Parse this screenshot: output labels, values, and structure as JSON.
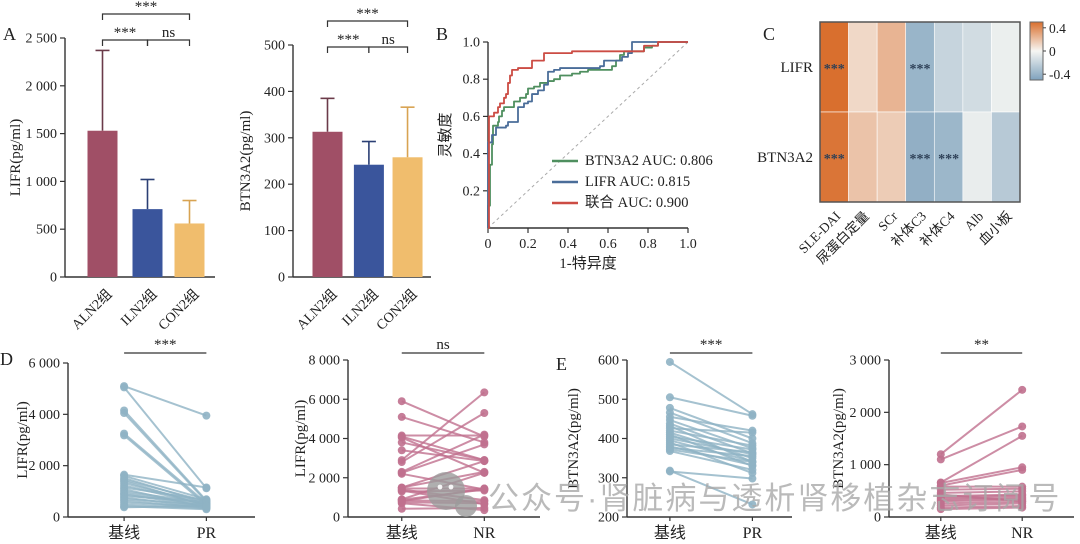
{
  "figure": {
    "panels": {
      "a": "A",
      "b": "B",
      "c": "C",
      "d": "D",
      "e": "E"
    },
    "watermark": {
      "text": "公众号·肾脏病与透析肾移植杂志订阅号",
      "logo": "wechat-like-gray-logo"
    },
    "colors": {
      "bar_maroon": "#a04f66",
      "bar_blue": "#3a559c",
      "bar_yellow": "#f0bd6d",
      "roc_green": "#4f8f5f",
      "roc_blue": "#4a6d99",
      "roc_red": "#cc4c44",
      "paired_blue": "#8fb3c4",
      "paired_pink": "#c0708e",
      "heat_positive": "#d96f2e",
      "heat_negative": "#7fa2bd",
      "axis": "#333333",
      "watermark_gray": "#a9a9a9"
    }
  },
  "chart_data": [
    {
      "id": "a1",
      "type": "bar",
      "panel": "A",
      "ylabel": "LIFR(pg/ml)",
      "ylim": [
        0,
        2500
      ],
      "categories": [
        "ALN2组",
        "ILN2组",
        "CON2组"
      ],
      "values": [
        1530,
        710,
        560
      ],
      "errors": [
        840,
        310,
        240
      ],
      "bar_colors": [
        "#a04f66",
        "#3a559c",
        "#f0bd6d"
      ],
      "err_colors": [
        "#6b3a49",
        "#2b3f74",
        "#d8a352"
      ],
      "yticks": [
        {
          "v": 0,
          "t": "0"
        },
        {
          "v": 500,
          "t": "500"
        },
        {
          "v": 1000,
          "t": "1 000"
        },
        {
          "v": 1500,
          "t": "1 500"
        },
        {
          "v": 2000,
          "t": "2 000"
        },
        {
          "v": 2500,
          "t": "2 500"
        }
      ],
      "significance": [
        {
          "from": 0,
          "to": 2,
          "label": "***",
          "row": 0
        },
        {
          "from": 0,
          "to": 1,
          "label": "***",
          "row": 1
        },
        {
          "from": 1,
          "to": 2,
          "label": "ns",
          "row": 1
        }
      ]
    },
    {
      "id": "a2",
      "type": "bar",
      "panel": "A",
      "ylabel": "BTN3A2(pg/ml)",
      "ylim": [
        0,
        500
      ],
      "categories": [
        "ALN2组",
        "ILN2组",
        "CON2组"
      ],
      "values": [
        313,
        242,
        258
      ],
      "errors": [
        72,
        50,
        108
      ],
      "bar_colors": [
        "#a04f66",
        "#3a559c",
        "#f0bd6d"
      ],
      "err_colors": [
        "#6b3a49",
        "#2b3f74",
        "#d8a352"
      ],
      "yticks": [
        {
          "v": 0,
          "t": "0"
        },
        {
          "v": 100,
          "t": "100"
        },
        {
          "v": 200,
          "t": "200"
        },
        {
          "v": 300,
          "t": "300"
        },
        {
          "v": 400,
          "t": "400"
        },
        {
          "v": 500,
          "t": "500"
        }
      ],
      "significance": [
        {
          "from": 0,
          "to": 2,
          "label": "***",
          "row": 0
        },
        {
          "from": 0,
          "to": 1,
          "label": "***",
          "row": 1
        },
        {
          "from": 1,
          "to": 2,
          "label": "ns",
          "row": 1
        }
      ]
    },
    {
      "id": "b",
      "type": "roc",
      "panel": "B",
      "xlabel": "1-特异度",
      "ylabel": "灵敏度",
      "xlim": [
        0,
        1
      ],
      "ylim": [
        0,
        1
      ],
      "xticks": [
        {
          "v": 0,
          "t": "0"
        },
        {
          "v": 0.2,
          "t": "0.2"
        },
        {
          "v": 0.4,
          "t": "0.4"
        },
        {
          "v": 0.6,
          "t": "0.6"
        },
        {
          "v": 0.8,
          "t": "0.8"
        },
        {
          "v": 1,
          "t": "1.0"
        }
      ],
      "yticks": [
        {
          "v": 0.2,
          "t": "0.2"
        },
        {
          "v": 0.4,
          "t": "0.4"
        },
        {
          "v": 0.6,
          "t": "0.6"
        },
        {
          "v": 0.8,
          "t": "0.8"
        },
        {
          "v": 1,
          "t": "1.0"
        }
      ],
      "diagonal": true,
      "legend_position": "lower-right",
      "series": [
        {
          "name": "BTN3A2 AUC: 0.806",
          "color": "#4f8f5f",
          "points": [
            [
              0,
              0
            ],
            [
              0,
              0.12
            ],
            [
              0.01,
              0.34
            ],
            [
              0.02,
              0.45
            ],
            [
              0.025,
              0.55
            ],
            [
              0.05,
              0.57
            ],
            [
              0.055,
              0.6
            ],
            [
              0.07,
              0.63
            ],
            [
              0.08,
              0.65
            ],
            [
              0.12,
              0.65
            ],
            [
              0.13,
              0.68
            ],
            [
              0.16,
              0.7
            ],
            [
              0.19,
              0.72
            ],
            [
              0.2,
              0.75
            ],
            [
              0.23,
              0.76
            ],
            [
              0.26,
              0.78
            ],
            [
              0.3,
              0.79
            ],
            [
              0.33,
              0.8
            ],
            [
              0.36,
              0.82
            ],
            [
              0.42,
              0.83
            ],
            [
              0.46,
              0.84
            ],
            [
              0.5,
              0.85
            ],
            [
              0.6,
              0.85
            ],
            [
              0.62,
              0.87
            ],
            [
              0.64,
              0.9
            ],
            [
              0.66,
              0.93
            ],
            [
              0.68,
              0.95
            ],
            [
              0.74,
              0.95
            ],
            [
              0.78,
              0.97
            ],
            [
              0.82,
              0.98
            ],
            [
              0.85,
              1.0
            ],
            [
              1,
              1
            ]
          ]
        },
        {
          "name": "LIFR AUC: 0.815",
          "color": "#4a6d99",
          "points": [
            [
              0,
              0
            ],
            [
              0,
              0.46
            ],
            [
              0.02,
              0.5
            ],
            [
              0.04,
              0.54
            ],
            [
              0.09,
              0.55
            ],
            [
              0.1,
              0.57
            ],
            [
              0.14,
              0.57
            ],
            [
              0.15,
              0.65
            ],
            [
              0.18,
              0.67
            ],
            [
              0.2,
              0.68
            ],
            [
              0.22,
              0.72
            ],
            [
              0.25,
              0.74
            ],
            [
              0.28,
              0.77
            ],
            [
              0.3,
              0.84
            ],
            [
              0.33,
              0.85
            ],
            [
              0.36,
              0.86
            ],
            [
              0.54,
              0.86
            ],
            [
              0.56,
              0.87
            ],
            [
              0.58,
              0.9
            ],
            [
              0.65,
              0.9
            ],
            [
              0.67,
              0.92
            ],
            [
              0.7,
              0.94
            ],
            [
              0.72,
              1.0
            ],
            [
              1,
              1
            ]
          ]
        },
        {
          "name": "联合 AUC: 0.900",
          "color": "#cc4c44",
          "points": [
            [
              0,
              0
            ],
            [
              0.005,
              0.33
            ],
            [
              0.005,
              0.6
            ],
            [
              0.03,
              0.62
            ],
            [
              0.05,
              0.65
            ],
            [
              0.06,
              0.67
            ],
            [
              0.08,
              0.7
            ],
            [
              0.09,
              0.72
            ],
            [
              0.1,
              0.78
            ],
            [
              0.11,
              0.82
            ],
            [
              0.12,
              0.85
            ],
            [
              0.15,
              0.86
            ],
            [
              0.22,
              0.9
            ],
            [
              0.27,
              0.9
            ],
            [
              0.28,
              0.94
            ],
            [
              0.42,
              0.95
            ],
            [
              0.75,
              0.95
            ],
            [
              0.78,
              0.98
            ],
            [
              0.85,
              1.0
            ],
            [
              1,
              1
            ]
          ]
        }
      ]
    },
    {
      "id": "c",
      "type": "heatmap",
      "panel": "C",
      "rows": [
        "LIFR",
        "BTN3A2"
      ],
      "cols": [
        "SLE-DAI",
        "尿蛋白定量",
        "SCr",
        "补体C3",
        "补体C4",
        "Alb",
        "血小板"
      ],
      "values": [
        [
          0.45,
          0.1,
          0.22,
          -0.35,
          -0.18,
          -0.14,
          -0.04
        ],
        [
          0.43,
          0.17,
          0.14,
          -0.38,
          -0.34,
          -0.05,
          -0.24
        ]
      ],
      "sig": [
        [
          "***",
          "",
          "",
          "***",
          "",
          "",
          ""
        ],
        [
          "***",
          "",
          "",
          "***",
          "***",
          "",
          ""
        ]
      ],
      "vmax": 0.45,
      "colorbar": {
        "range": [
          0.5,
          -0.5
        ],
        "ticks": [
          {
            "v": 0.4,
            "t": "0.4"
          },
          {
            "v": 0,
            "t": "0"
          },
          {
            "v": -0.4,
            "t": "-0.4"
          }
        ]
      }
    },
    {
      "id": "d1",
      "type": "paired",
      "panel": "D",
      "ylabel": "LIFR(pg/ml)",
      "ylim": [
        0,
        6000
      ],
      "categories": [
        "基线",
        "PR"
      ],
      "sig": "***",
      "color": "#8fb3c4",
      "yticks": [
        {
          "v": 0,
          "t": "0"
        },
        {
          "v": 2000,
          "t": "2 000"
        },
        {
          "v": 4000,
          "t": "4 000"
        },
        {
          "v": 6000,
          "t": "6 000"
        }
      ],
      "pairs": [
        [
          5100,
          3950
        ],
        [
          5050,
          1120
        ],
        [
          4150,
          640
        ],
        [
          4050,
          600
        ],
        [
          3250,
          540
        ],
        [
          3180,
          470
        ],
        [
          1650,
          1150
        ],
        [
          1600,
          690
        ],
        [
          1520,
          540
        ],
        [
          1450,
          610
        ],
        [
          1400,
          430
        ],
        [
          1320,
          520
        ],
        [
          1230,
          480
        ],
        [
          1150,
          660
        ],
        [
          1080,
          380
        ],
        [
          1000,
          540
        ],
        [
          930,
          470
        ],
        [
          880,
          420
        ],
        [
          820,
          590
        ],
        [
          760,
          380
        ],
        [
          700,
          470
        ],
        [
          640,
          350
        ],
        [
          560,
          410
        ],
        [
          480,
          340
        ],
        [
          420,
          300
        ],
        [
          380,
          430
        ]
      ]
    },
    {
      "id": "d2",
      "type": "paired",
      "panel": "D",
      "ylabel": "LIFR(pg/ml)",
      "ylim": [
        0,
        8000
      ],
      "categories": [
        "基线",
        "NR"
      ],
      "sig": "ns",
      "color": "#c0708e",
      "yticks": [
        {
          "v": 0,
          "t": "0"
        },
        {
          "v": 2000,
          "t": "2 000"
        },
        {
          "v": 4000,
          "t": "4 000"
        },
        {
          "v": 6000,
          "t": "6 000"
        },
        {
          "v": 8000,
          "t": "8 000"
        }
      ],
      "pairs": [
        [
          5900,
          4100
        ],
        [
          5100,
          3800
        ],
        [
          4150,
          4150
        ],
        [
          4100,
          2900
        ],
        [
          4050,
          2250
        ],
        [
          3800,
          2900
        ],
        [
          3400,
          2850
        ],
        [
          2900,
          6350
        ],
        [
          2800,
          5300
        ],
        [
          2300,
          4200
        ],
        [
          2250,
          3700
        ],
        [
          2200,
          1400
        ],
        [
          1500,
          2850
        ],
        [
          1500,
          2300
        ],
        [
          1450,
          1450
        ],
        [
          1400,
          860
        ],
        [
          1350,
          650
        ],
        [
          1300,
          1350
        ],
        [
          900,
          2250
        ],
        [
          880,
          1400
        ],
        [
          850,
          800
        ],
        [
          800,
          1450
        ],
        [
          750,
          700
        ],
        [
          700,
          350
        ],
        [
          420,
          460
        ]
      ]
    },
    {
      "id": "e1",
      "type": "paired",
      "panel": "E",
      "ylabel": "BTN3A2(pg/ml)",
      "ylim": [
        200,
        600
      ],
      "categories": [
        "基线",
        "PR"
      ],
      "sig": "***",
      "color": "#8fb3c4",
      "yticks": [
        {
          "v": 200,
          "t": "200"
        },
        {
          "v": 300,
          "t": "300"
        },
        {
          "v": 400,
          "t": "400"
        },
        {
          "v": 500,
          "t": "500"
        },
        {
          "v": 600,
          "t": "600"
        }
      ],
      "pairs": [
        [
          595,
          462
        ],
        [
          505,
          458
        ],
        [
          478,
          400
        ],
        [
          466,
          388
        ],
        [
          455,
          420
        ],
        [
          447,
          375
        ],
        [
          438,
          362
        ],
        [
          432,
          340
        ],
        [
          426,
          415
        ],
        [
          420,
          382
        ],
        [
          415,
          350
        ],
        [
          410,
          330
        ],
        [
          405,
          372
        ],
        [
          400,
          360
        ],
        [
          395,
          342
        ],
        [
          390,
          312
        ],
        [
          385,
          365
        ],
        [
          380,
          332
        ],
        [
          376,
          355
        ],
        [
          372,
          340
        ],
        [
          368,
          320
        ],
        [
          316,
          298
        ],
        [
          318,
          232
        ]
      ]
    },
    {
      "id": "e2",
      "type": "paired",
      "panel": "E",
      "ylabel": "BTN3A2(pg/ml)",
      "ylim": [
        0,
        3000
      ],
      "categories": [
        "基线",
        "NR"
      ],
      "sig": "**",
      "color": "#c0708e",
      "yticks": [
        {
          "v": 0,
          "t": "0"
        },
        {
          "v": 1000,
          "t": "1 000"
        },
        {
          "v": 2000,
          "t": "2 000"
        },
        {
          "v": 3000,
          "t": "3 000"
        }
      ],
      "pairs": [
        [
          1200,
          2430
        ],
        [
          1100,
          1730
        ],
        [
          660,
          1550
        ],
        [
          650,
          950
        ],
        [
          600,
          900
        ],
        [
          580,
          580
        ],
        [
          520,
          540
        ],
        [
          460,
          490
        ],
        [
          430,
          300
        ],
        [
          400,
          430
        ],
        [
          380,
          410
        ],
        [
          350,
          380
        ],
        [
          330,
          350
        ],
        [
          300,
          330
        ],
        [
          260,
          290
        ],
        [
          220,
          260
        ],
        [
          180,
          210
        ],
        [
          150,
          180
        ]
      ]
    }
  ]
}
